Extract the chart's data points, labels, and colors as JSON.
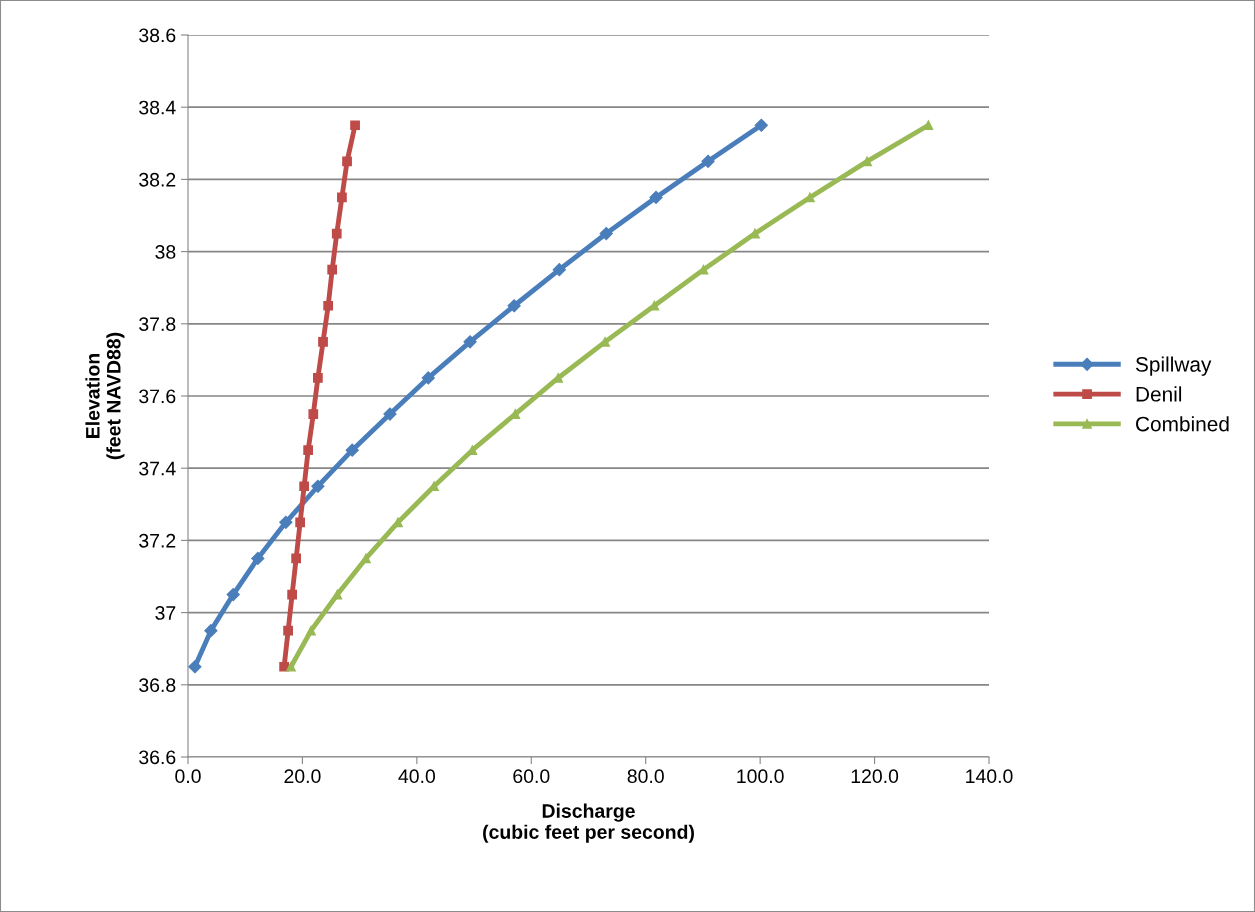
{
  "chart_data": {
    "type": "line",
    "xlabel": "Discharge\n(cubic feet per second)",
    "ylabel": "Elevation\n(feet NAVD88)",
    "xlim": [
      0,
      140
    ],
    "xticks": [
      {
        "value": 0,
        "label": "0.0"
      },
      {
        "value": 20,
        "label": "20.0"
      },
      {
        "value": 40,
        "label": "40.0"
      },
      {
        "value": 60,
        "label": "60.0"
      },
      {
        "value": 80,
        "label": "80.0"
      },
      {
        "value": 100,
        "label": "100.0"
      },
      {
        "value": 120,
        "label": "120.0"
      },
      {
        "value": 140,
        "label": "140.0"
      }
    ],
    "ylim": [
      36.6,
      38.6
    ],
    "yticks": [
      36.6,
      36.8,
      37,
      37.2,
      37.4,
      37.6,
      37.8,
      38,
      38.2,
      38.4,
      38.6
    ],
    "grid": "y",
    "legend": "right",
    "series": [
      {
        "name": "Spillway",
        "color": "#4a7ebb",
        "marker": "diamond",
        "x": [
          1.2,
          4.0,
          7.9,
          12.2,
          17.1,
          22.7,
          28.7,
          35.3,
          42.0,
          49.3,
          57.0,
          64.9,
          73.1,
          81.8,
          90.9,
          100.2
        ],
        "values": [
          36.85,
          36.95,
          37.05,
          37.15,
          37.25,
          37.35,
          37.45,
          37.55,
          37.65,
          37.75,
          37.85,
          37.95,
          38.05,
          38.15,
          38.25,
          38.35
        ]
      },
      {
        "name": "Denil",
        "color": "#be4b48",
        "marker": "square",
        "x": [
          16.8,
          17.5,
          18.2,
          18.9,
          19.6,
          20.3,
          21.0,
          21.9,
          22.7,
          23.6,
          24.5,
          25.2,
          26.0,
          26.9,
          27.8,
          29.2
        ],
        "values": [
          36.85,
          36.95,
          37.05,
          37.15,
          37.25,
          37.35,
          37.45,
          37.55,
          37.65,
          37.75,
          37.85,
          37.95,
          38.05,
          38.15,
          38.25,
          38.35
        ]
      },
      {
        "name": "Combined",
        "color": "#98b954",
        "marker": "triangle",
        "x": [
          18.0,
          21.5,
          26.1,
          31.1,
          36.7,
          43.0,
          49.7,
          57.2,
          64.7,
          72.9,
          81.5,
          90.1,
          99.1,
          108.7,
          118.7,
          129.4
        ],
        "values": [
          36.85,
          36.95,
          37.05,
          37.15,
          37.25,
          37.35,
          37.45,
          37.55,
          37.65,
          37.75,
          37.85,
          37.95,
          38.05,
          38.15,
          38.25,
          38.35
        ]
      }
    ]
  }
}
